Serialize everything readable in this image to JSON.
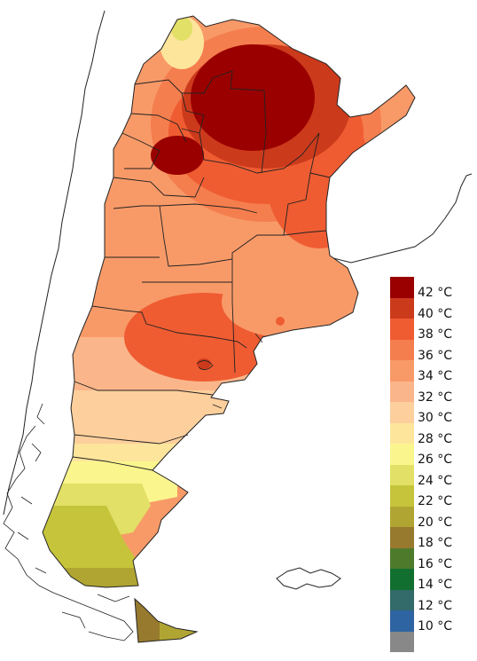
{
  "legend": {
    "items": [
      {
        "label": "42 °C",
        "color": "#9a0000"
      },
      {
        "label": "40 °C",
        "color": "#cc3a1c"
      },
      {
        "label": "38 °C",
        "color": "#ef5c32"
      },
      {
        "label": "36 °C",
        "color": "#f57e4e"
      },
      {
        "label": "34 °C",
        "color": "#f89a68"
      },
      {
        "label": "32 °C",
        "color": "#fab68a"
      },
      {
        "label": "30 °C",
        "color": "#fccf9c"
      },
      {
        "label": "28 °C",
        "color": "#fde59c"
      },
      {
        "label": "26 °C",
        "color": "#fbf58e"
      },
      {
        "label": "24 °C",
        "color": "#e2e066"
      },
      {
        "label": "22 °C",
        "color": "#c6c43a"
      },
      {
        "label": "20 °C",
        "color": "#b0a532"
      },
      {
        "label": "18 °C",
        "color": "#977a2e"
      },
      {
        "label": "16 °C",
        "color": "#4e7a2c"
      },
      {
        "label": "14 °C",
        "color": "#117030"
      },
      {
        "label": "12 °C",
        "color": "#336a6a"
      },
      {
        "label": "10 °C",
        "color": "#2f64a2"
      },
      {
        "label": "",
        "color": "#888888"
      }
    ]
  }
}
